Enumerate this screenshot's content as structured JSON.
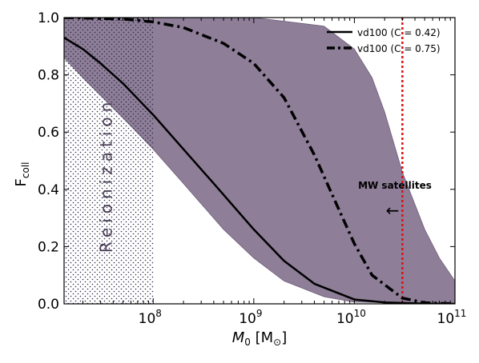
{
  "chart_data": {
    "type": "line",
    "title": "",
    "xlabel_main": "M",
    "xlabel_sub": "0",
    "xlabel_unit": " [M",
    "xlabel_unit_sub": "⊙",
    "xlabel_close": "]",
    "ylabel_main": "F",
    "ylabel_sub": "coll",
    "xscale": "log",
    "xlim": [
      13000000,
      100000000000
    ],
    "ylim": [
      0,
      1.0
    ],
    "x_ticks": [
      {
        "value": 100000000,
        "base": "10",
        "exp": "8"
      },
      {
        "value": 1000000000,
        "base": "10",
        "exp": "9"
      },
      {
        "value": 10000000000,
        "base": "10",
        "exp": "10"
      },
      {
        "value": 100000000000,
        "base": "10",
        "exp": "11"
      }
    ],
    "y_ticks": [
      {
        "value": 0.0,
        "label": "0.0"
      },
      {
        "value": 0.2,
        "label": "0.2"
      },
      {
        "value": 0.4,
        "label": "0.4"
      },
      {
        "value": 0.6,
        "label": "0.6"
      },
      {
        "value": 0.8,
        "label": "0.8"
      },
      {
        "value": 1.0,
        "label": "1.0"
      }
    ],
    "series": [
      {
        "name": "vd100 (C = 0.42)",
        "style": "solid",
        "color": "#000000",
        "x": [
          13000000,
          20000000,
          30000000,
          50000000,
          100000000,
          200000000,
          400000000,
          1000000000,
          2000000000,
          4000000000,
          10000000000,
          20000000000,
          50000000000,
          100000000000
        ],
        "y": [
          0.93,
          0.89,
          0.84,
          0.77,
          0.66,
          0.54,
          0.42,
          0.26,
          0.15,
          0.07,
          0.015,
          0.005,
          0.0005,
          0.0
        ]
      },
      {
        "name": "vd100 (C = 0.75)",
        "style": "dashdot",
        "color": "#000000",
        "x": [
          13000000,
          50000000,
          100000000,
          200000000,
          500000000,
          1000000000,
          2000000000,
          4000000000,
          7000000000,
          10000000000,
          15000000000,
          30000000000,
          50000000000,
          100000000000
        ],
        "y": [
          1.0,
          0.995,
          0.985,
          0.965,
          0.91,
          0.84,
          0.72,
          0.52,
          0.33,
          0.21,
          0.1,
          0.02,
          0.004,
          0.0
        ]
      }
    ],
    "band": {
      "color": "#8e7e98",
      "upper_x": [
        13000000,
        1000000000,
        5000000000,
        10000000000,
        15000000000,
        20000000000,
        30000000000,
        50000000000,
        70000000000,
        100000000000
      ],
      "upper_y": [
        1.0,
        1.0,
        0.97,
        0.89,
        0.79,
        0.67,
        0.46,
        0.26,
        0.16,
        0.08
      ],
      "lower_x": [
        13000000,
        20000000,
        50000000,
        100000000,
        200000000,
        500000000,
        1000000000,
        2000000000,
        5000000000,
        10000000000,
        100000000000
      ],
      "lower_y": [
        0.86,
        0.79,
        0.65,
        0.54,
        0.42,
        0.26,
        0.16,
        0.08,
        0.025,
        0.006,
        0.0
      ]
    },
    "reionization_region": {
      "label": "Reionization",
      "x_max": 100000000,
      "y_max": 1.0
    },
    "mw_line": {
      "x": 30000000000,
      "color": "#dd1111",
      "label": "MW satellites",
      "arrow": "←"
    },
    "legend_position": "top-right"
  }
}
